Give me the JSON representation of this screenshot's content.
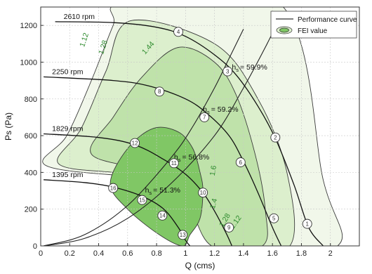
{
  "chart_data": {
    "type": "line",
    "xlabel": "Q (cms)",
    "ylabel": "Ps (Pa)",
    "xlim": [
      0,
      2.2
    ],
    "ylim": [
      0,
      1300
    ],
    "x_ticks": [
      "0",
      "0.2",
      "0.4",
      "0.6",
      "0.8",
      "1",
      "1.2",
      "1.4",
      "1.6",
      "1.8",
      "2"
    ],
    "x_tick_values": [
      0,
      0.2,
      0.4,
      0.6,
      0.8,
      1.0,
      1.2,
      1.4,
      1.6,
      1.8,
      2.0
    ],
    "y_ticks": [
      "0",
      "200",
      "400",
      "600",
      "800",
      "1000",
      "1200"
    ],
    "y_tick_values": [
      0,
      200,
      400,
      600,
      800,
      1000,
      1200
    ],
    "grid": true,
    "legend": {
      "position": "top-right",
      "entries": [
        {
          "label": "Performance curve"
        },
        {
          "label": "FEI value",
          "color": "#2e8b2e"
        }
      ]
    },
    "fei_regions": [
      {
        "label": "1.12",
        "color": "#f1f7ea",
        "boundary": [
          [
            0.03,
            440
          ],
          [
            0.18,
            600
          ],
          [
            0.35,
            900
          ],
          [
            0.5,
            1200
          ],
          [
            0.58,
            1320
          ],
          [
            1.65,
            1320
          ],
          [
            1.95,
            360
          ],
          [
            2.05,
            0
          ],
          [
            1.4,
            0
          ],
          [
            1.3,
            300
          ],
          [
            1.0,
            370
          ],
          [
            0.6,
            380
          ]
        ]
      },
      {
        "label": "1.28",
        "color": "#dcefcd",
        "boundary": [
          [
            0.12,
            450
          ],
          [
            0.28,
            640
          ],
          [
            0.45,
            950
          ],
          [
            0.62,
            1225
          ],
          [
            1.2,
            1100
          ],
          [
            1.5,
            800
          ],
          [
            1.7,
            400
          ],
          [
            1.72,
            0
          ],
          [
            1.3,
            0
          ],
          [
            1.15,
            250
          ],
          [
            0.9,
            380
          ],
          [
            0.5,
            400
          ]
        ]
      },
      {
        "label": "1.44",
        "color": "#bfe2aa",
        "boundary": [
          [
            0.35,
            500
          ],
          [
            0.5,
            700
          ],
          [
            0.7,
            920
          ],
          [
            0.95,
            1080
          ],
          [
            1.2,
            1000
          ],
          [
            1.35,
            820
          ],
          [
            1.48,
            500
          ],
          [
            1.55,
            200
          ],
          [
            1.53,
            0
          ],
          [
            1.18,
            0
          ],
          [
            1.0,
            250
          ],
          [
            0.75,
            400
          ]
        ]
      },
      {
        "label": "1.6",
        "color": "#80c765",
        "boundary": [
          [
            0.48,
            340
          ],
          [
            0.6,
            530
          ],
          [
            0.78,
            640
          ],
          [
            0.95,
            620
          ],
          [
            1.05,
            530
          ],
          [
            1.1,
            400
          ],
          [
            1.12,
            300
          ],
          [
            1.1,
            150
          ],
          [
            1.03,
            60
          ],
          [
            0.98,
            0
          ],
          [
            0.82,
            60
          ],
          [
            0.6,
            200
          ]
        ]
      }
    ],
    "performance_curves": [
      {
        "label": "2610 rpm",
        "points": [
          [
            0.1,
            1220
          ],
          [
            0.5,
            1215
          ],
          [
            0.8,
            1190
          ],
          [
            1.0,
            1140
          ],
          [
            1.2,
            1040
          ],
          [
            1.35,
            930
          ],
          [
            1.5,
            760
          ],
          [
            1.62,
            585
          ],
          [
            1.75,
            330
          ],
          [
            1.85,
            100
          ],
          [
            1.95,
            0
          ]
        ]
      },
      {
        "label": "2250 rpm",
        "points": [
          [
            0.02,
            920
          ],
          [
            0.5,
            900
          ],
          [
            0.75,
            870
          ],
          [
            1.0,
            800
          ],
          [
            1.15,
            720
          ],
          [
            1.3,
            600
          ],
          [
            1.4,
            460
          ],
          [
            1.5,
            290
          ],
          [
            1.6,
            100
          ],
          [
            1.66,
            0
          ]
        ]
      },
      {
        "label": "1829 rpm",
        "points": [
          [
            0.02,
            610
          ],
          [
            0.4,
            590
          ],
          [
            0.65,
            550
          ],
          [
            0.85,
            470
          ],
          [
            1.0,
            390
          ],
          [
            1.12,
            290
          ],
          [
            1.2,
            190
          ],
          [
            1.28,
            70
          ],
          [
            1.32,
            0
          ]
        ]
      },
      {
        "label": "1395 rpm",
        "points": [
          [
            0.02,
            360
          ],
          [
            0.3,
            345
          ],
          [
            0.5,
            320
          ],
          [
            0.7,
            270
          ],
          [
            0.85,
            200
          ],
          [
            0.95,
            100
          ],
          [
            1.0,
            30
          ],
          [
            1.03,
            0
          ]
        ]
      }
    ],
    "system_curves": [
      [
        [
          0.02,
          0
        ],
        [
          0.3,
          40
        ],
        [
          0.6,
          150
        ],
        [
          0.9,
          340
        ],
        [
          1.2,
          600
        ],
        [
          1.4,
          860
        ],
        [
          1.55,
          1080
        ],
        [
          1.65,
          1240
        ]
      ],
      [
        [
          0.02,
          0
        ],
        [
          0.3,
          60
        ],
        [
          0.6,
          220
        ],
        [
          0.9,
          480
        ],
        [
          1.05,
          650
        ],
        [
          1.2,
          860
        ],
        [
          1.3,
          1020
        ],
        [
          1.4,
          1180
        ]
      ]
    ],
    "efficiency_labels": [
      {
        "label": "h",
        "sub": "s",
        "value": "= 59.9%",
        "x": 1.32,
        "y": 960
      },
      {
        "label": "h",
        "sub": "s",
        "value": "= 59.2%",
        "x": 1.12,
        "y": 730
      },
      {
        "label": "h",
        "sub": "s",
        "value": "= 56.8%",
        "x": 0.92,
        "y": 470
      },
      {
        "label": "h",
        "sub": "s",
        "value": "= 51.3%",
        "x": 0.72,
        "y": 290
      }
    ],
    "fei_labels": [
      {
        "text": "1.12",
        "x": 0.3,
        "y": 1080,
        "angle": -72
      },
      {
        "text": "1.28",
        "x": 0.43,
        "y": 1040,
        "angle": -72
      },
      {
        "text": "1.44",
        "x": 0.72,
        "y": 1040,
        "angle": -48
      },
      {
        "text": "1.6",
        "x": 1.2,
        "y": 380,
        "angle": -80
      },
      {
        "text": "1.4",
        "x": 1.2,
        "y": 200,
        "angle": -75
      },
      {
        "text": "1.28",
        "x": 1.26,
        "y": 100,
        "angle": -60
      },
      {
        "text": "1.12",
        "x": 1.33,
        "y": 90,
        "angle": -55
      }
    ],
    "operating_points": [
      {
        "id": "1",
        "x": 1.84,
        "y": 120
      },
      {
        "id": "2",
        "x": 1.62,
        "y": 590
      },
      {
        "id": "3",
        "x": 1.29,
        "y": 950
      },
      {
        "id": "4",
        "x": 0.95,
        "y": 1165
      },
      {
        "id": "5",
        "x": 1.61,
        "y": 150
      },
      {
        "id": "6",
        "x": 1.38,
        "y": 455
      },
      {
        "id": "7",
        "x": 1.13,
        "y": 700
      },
      {
        "id": "8",
        "x": 0.82,
        "y": 840
      },
      {
        "id": "9",
        "x": 1.3,
        "y": 100
      },
      {
        "id": "10",
        "x": 1.12,
        "y": 290
      },
      {
        "id": "11",
        "x": 0.92,
        "y": 450
      },
      {
        "id": "12",
        "x": 0.65,
        "y": 560
      },
      {
        "id": "13",
        "x": 0.98,
        "y": 60
      },
      {
        "id": "14",
        "x": 0.84,
        "y": 165
      },
      {
        "id": "15",
        "x": 0.7,
        "y": 250
      },
      {
        "id": "16",
        "x": 0.5,
        "y": 315
      }
    ]
  }
}
